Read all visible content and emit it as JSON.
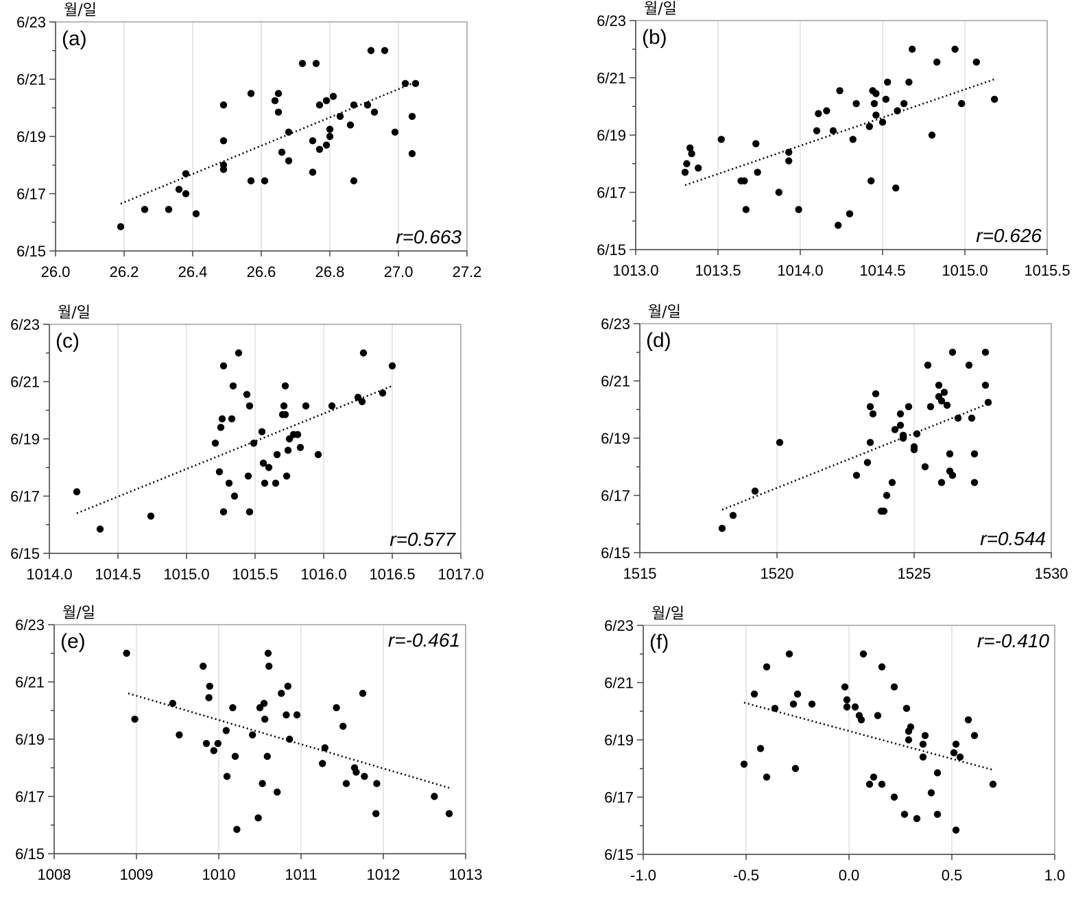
{
  "chart_data": [
    {
      "id": "a",
      "type": "scatter",
      "panel_label": "(a)",
      "r_label": "r=0.663",
      "unit_label": "월/일",
      "xlim": [
        26.0,
        27.2
      ],
      "xticks": [
        26.0,
        26.2,
        26.4,
        26.6,
        26.8,
        27.0,
        27.2
      ],
      "xtick_labels": [
        "26.0",
        "26.2",
        "26.4",
        "26.6",
        "26.8",
        "27.0",
        "27.2"
      ],
      "ylim": [
        0,
        8
      ],
      "yticks": [
        0,
        2,
        4,
        6,
        8
      ],
      "ytick_labels": [
        "6/15",
        "6/17",
        "6/19",
        "6/21",
        "6/23"
      ],
      "trend": {
        "x": [
          26.19,
          27.05
        ],
        "y": [
          1.65,
          5.9
        ]
      },
      "points": [
        [
          26.19,
          0.85
        ],
        [
          26.26,
          1.45
        ],
        [
          26.33,
          1.45
        ],
        [
          26.36,
          2.15
        ],
        [
          26.38,
          2.0
        ],
        [
          26.38,
          2.7
        ],
        [
          26.41,
          1.3
        ],
        [
          26.49,
          5.1
        ],
        [
          26.49,
          3.85
        ],
        [
          26.49,
          3.0
        ],
        [
          26.49,
          2.85
        ],
        [
          26.57,
          5.5
        ],
        [
          26.57,
          2.45
        ],
        [
          26.61,
          2.45
        ],
        [
          26.64,
          5.25
        ],
        [
          26.65,
          5.5
        ],
        [
          26.65,
          4.85
        ],
        [
          26.66,
          3.45
        ],
        [
          26.68,
          3.15
        ],
        [
          26.68,
          4.15
        ],
        [
          26.72,
          6.55
        ],
        [
          26.75,
          3.85
        ],
        [
          26.75,
          2.75
        ],
        [
          26.76,
          6.55
        ],
        [
          26.77,
          5.1
        ],
        [
          26.77,
          3.55
        ],
        [
          26.79,
          3.7
        ],
        [
          26.79,
          5.25
        ],
        [
          26.8,
          4.0
        ],
        [
          26.8,
          4.25
        ],
        [
          26.81,
          5.4
        ],
        [
          26.83,
          4.7
        ],
        [
          26.86,
          4.4
        ],
        [
          26.87,
          5.1
        ],
        [
          26.87,
          2.45
        ],
        [
          26.91,
          5.1
        ],
        [
          26.92,
          7.0
        ],
        [
          26.93,
          4.85
        ],
        [
          26.96,
          7.0
        ],
        [
          26.99,
          4.15
        ],
        [
          27.02,
          5.85
        ],
        [
          27.04,
          4.7
        ],
        [
          27.04,
          3.4
        ],
        [
          27.05,
          5.85
        ]
      ]
    },
    {
      "id": "b",
      "type": "scatter",
      "panel_label": "(b)",
      "r_label": "r=0.626",
      "unit_label": "월/일",
      "xlim": [
        1013.0,
        1015.5
      ],
      "xticks": [
        1013.0,
        1013.5,
        1014.0,
        1014.5,
        1015.0,
        1015.5
      ],
      "xtick_labels": [
        "1013.0",
        "1013.5",
        "1014.0",
        "1014.5",
        "1015.0",
        "1015.5"
      ],
      "ylim": [
        0,
        8
      ],
      "yticks": [
        0,
        2,
        4,
        6,
        8
      ],
      "ytick_labels": [
        "6/15",
        "6/17",
        "6/19",
        "6/21",
        "6/23"
      ],
      "trend": {
        "x": [
          1013.3,
          1015.18
        ],
        "y": [
          2.25,
          5.95
        ]
      },
      "points": [
        [
          1013.3,
          2.7
        ],
        [
          1013.31,
          3.0
        ],
        [
          1013.33,
          3.55
        ],
        [
          1013.34,
          3.35
        ],
        [
          1013.38,
          2.85
        ],
        [
          1013.52,
          3.85
        ],
        [
          1013.64,
          2.4
        ],
        [
          1013.66,
          2.4
        ],
        [
          1013.67,
          1.4
        ],
        [
          1013.73,
          3.7
        ],
        [
          1013.74,
          2.7
        ],
        [
          1013.87,
          2.0
        ],
        [
          1013.93,
          3.4
        ],
        [
          1013.93,
          3.1
        ],
        [
          1013.99,
          1.4
        ],
        [
          1014.1,
          4.15
        ],
        [
          1014.11,
          4.75
        ],
        [
          1014.16,
          4.85
        ],
        [
          1014.2,
          4.15
        ],
        [
          1014.23,
          0.85
        ],
        [
          1014.24,
          5.55
        ],
        [
          1014.3,
          1.25
        ],
        [
          1014.32,
          3.85
        ],
        [
          1014.34,
          5.1
        ],
        [
          1014.42,
          4.3
        ],
        [
          1014.43,
          2.4
        ],
        [
          1014.44,
          5.55
        ],
        [
          1014.45,
          5.1
        ],
        [
          1014.46,
          5.45
        ],
        [
          1014.46,
          4.7
        ],
        [
          1014.5,
          4.45
        ],
        [
          1014.52,
          5.25
        ],
        [
          1014.53,
          5.85
        ],
        [
          1014.58,
          2.15
        ],
        [
          1014.59,
          4.85
        ],
        [
          1014.63,
          5.1
        ],
        [
          1014.66,
          5.85
        ],
        [
          1014.68,
          7.0
        ],
        [
          1014.8,
          4.0
        ],
        [
          1014.83,
          6.55
        ],
        [
          1014.94,
          7.0
        ],
        [
          1014.98,
          5.1
        ],
        [
          1015.07,
          6.55
        ],
        [
          1015.18,
          5.25
        ]
      ]
    },
    {
      "id": "c",
      "type": "scatter",
      "panel_label": "(c)",
      "r_label": "r=0.577",
      "unit_label": "월/일",
      "xlim": [
        1014.0,
        1017.0
      ],
      "xticks": [
        1014.0,
        1014.5,
        1015.0,
        1015.5,
        1016.0,
        1016.5,
        1017.0
      ],
      "xtick_labels": [
        "1014.0",
        "1014.5",
        "1015.0",
        "1015.5",
        "1016.0",
        "1016.5",
        "1017.0"
      ],
      "ylim": [
        0,
        8
      ],
      "yticks": [
        0,
        2,
        4,
        6,
        8
      ],
      "ytick_labels": [
        "6/15",
        "6/17",
        "6/19",
        "6/21",
        "6/23"
      ],
      "trend": {
        "x": [
          1014.2,
          1016.5
        ],
        "y": [
          1.4,
          5.85
        ]
      },
      "points": [
        [
          1014.2,
          2.15
        ],
        [
          1014.37,
          0.85
        ],
        [
          1014.74,
          1.3
        ],
        [
          1015.21,
          3.85
        ],
        [
          1015.24,
          2.85
        ],
        [
          1015.25,
          4.4
        ],
        [
          1015.26,
          4.7
        ],
        [
          1015.27,
          1.45
        ],
        [
          1015.27,
          6.55
        ],
        [
          1015.31,
          2.45
        ],
        [
          1015.33,
          4.7
        ],
        [
          1015.34,
          5.85
        ],
        [
          1015.35,
          2.0
        ],
        [
          1015.38,
          7.0
        ],
        [
          1015.44,
          5.55
        ],
        [
          1015.45,
          2.7
        ],
        [
          1015.46,
          5.15
        ],
        [
          1015.46,
          1.45
        ],
        [
          1015.49,
          3.85
        ],
        [
          1015.55,
          4.25
        ],
        [
          1015.56,
          3.15
        ],
        [
          1015.57,
          2.45
        ],
        [
          1015.6,
          3.0
        ],
        [
          1015.65,
          2.45
        ],
        [
          1015.66,
          3.45
        ],
        [
          1015.7,
          4.85
        ],
        [
          1015.71,
          5.15
        ],
        [
          1015.72,
          5.85
        ],
        [
          1015.72,
          4.85
        ],
        [
          1015.73,
          2.7
        ],
        [
          1015.74,
          3.6
        ],
        [
          1015.75,
          4.0
        ],
        [
          1015.78,
          4.15
        ],
        [
          1015.81,
          4.15
        ],
        [
          1015.83,
          3.7
        ],
        [
          1015.87,
          5.15
        ],
        [
          1015.96,
          3.45
        ],
        [
          1016.06,
          5.15
        ],
        [
          1016.25,
          5.45
        ],
        [
          1016.28,
          5.3
        ],
        [
          1016.29,
          7.0
        ],
        [
          1016.43,
          5.6
        ],
        [
          1016.5,
          6.55
        ]
      ]
    },
    {
      "id": "d",
      "type": "scatter",
      "panel_label": "(d)",
      "r_label": "r=0.544",
      "unit_label": "월/일",
      "xlim": [
        1515,
        1530
      ],
      "xticks": [
        1515,
        1520,
        1525,
        1530
      ],
      "xtick_labels": [
        "1515",
        "1520",
        "1525",
        "1530"
      ],
      "ylim": [
        0,
        8
      ],
      "yticks": [
        0,
        2,
        4,
        6,
        8
      ],
      "ytick_labels": [
        "6/15",
        "6/17",
        "6/19",
        "6/21",
        "6/23"
      ],
      "trend": {
        "x": [
          1518.0,
          1527.7
        ],
        "y": [
          1.5,
          5.2
        ]
      },
      "points": [
        [
          1518.0,
          0.85
        ],
        [
          1518.4,
          1.3
        ],
        [
          1519.2,
          2.15
        ],
        [
          1520.1,
          3.85
        ],
        [
          1522.9,
          2.7
        ],
        [
          1523.3,
          3.15
        ],
        [
          1523.4,
          3.85
        ],
        [
          1523.4,
          5.1
        ],
        [
          1523.5,
          4.85
        ],
        [
          1523.6,
          5.55
        ],
        [
          1523.8,
          1.45
        ],
        [
          1523.9,
          1.45
        ],
        [
          1524.0,
          2.0
        ],
        [
          1524.2,
          2.45
        ],
        [
          1524.3,
          4.3
        ],
        [
          1524.5,
          4.85
        ],
        [
          1524.5,
          4.45
        ],
        [
          1524.6,
          4.1
        ],
        [
          1524.6,
          4.0
        ],
        [
          1524.8,
          5.1
        ],
        [
          1525.0,
          3.7
        ],
        [
          1525.0,
          3.6
        ],
        [
          1525.1,
          4.15
        ],
        [
          1525.4,
          3.0
        ],
        [
          1525.5,
          6.55
        ],
        [
          1525.6,
          5.1
        ],
        [
          1525.9,
          5.85
        ],
        [
          1525.9,
          5.45
        ],
        [
          1526.0,
          5.3
        ],
        [
          1526.0,
          2.45
        ],
        [
          1526.1,
          5.6
        ],
        [
          1526.2,
          5.15
        ],
        [
          1526.3,
          3.45
        ],
        [
          1526.3,
          2.85
        ],
        [
          1526.4,
          2.7
        ],
        [
          1526.4,
          7.0
        ],
        [
          1526.6,
          4.7
        ],
        [
          1527.0,
          6.55
        ],
        [
          1527.1,
          4.7
        ],
        [
          1527.2,
          3.45
        ],
        [
          1527.2,
          2.45
        ],
        [
          1527.6,
          7.0
        ],
        [
          1527.6,
          5.85
        ],
        [
          1527.7,
          5.25
        ]
      ]
    },
    {
      "id": "e",
      "type": "scatter",
      "panel_label": "(e)",
      "r_label": "r=-0.461",
      "unit_label": "월/일",
      "xlim": [
        1008,
        1013
      ],
      "xticks": [
        1008,
        1009,
        1010,
        1011,
        1012,
        1013
      ],
      "xtick_labels": [
        "1008",
        "1009",
        "1010",
        "1011",
        "1012",
        "1013"
      ],
      "ylim": [
        0,
        8
      ],
      "yticks": [
        0,
        2,
        4,
        6,
        8
      ],
      "ytick_labels": [
        "6/15",
        "6/17",
        "6/19",
        "6/21",
        "6/23"
      ],
      "trend": {
        "x": [
          1008.9,
          1012.8
        ],
        "y": [
          5.6,
          2.3
        ]
      },
      "points": [
        [
          1008.88,
          7.0
        ],
        [
          1008.98,
          4.7
        ],
        [
          1009.44,
          5.25
        ],
        [
          1009.52,
          4.15
        ],
        [
          1009.81,
          6.55
        ],
        [
          1009.85,
          3.85
        ],
        [
          1009.88,
          5.45
        ],
        [
          1009.89,
          5.85
        ],
        [
          1009.94,
          3.6
        ],
        [
          1009.99,
          3.85
        ],
        [
          1010.09,
          4.3
        ],
        [
          1010.1,
          2.7
        ],
        [
          1010.17,
          5.1
        ],
        [
          1010.2,
          3.4
        ],
        [
          1010.22,
          0.85
        ],
        [
          1010.41,
          4.15
        ],
        [
          1010.48,
          1.25
        ],
        [
          1010.5,
          5.1
        ],
        [
          1010.53,
          2.45
        ],
        [
          1010.55,
          5.25
        ],
        [
          1010.56,
          4.7
        ],
        [
          1010.59,
          3.4
        ],
        [
          1010.6,
          7.0
        ],
        [
          1010.61,
          6.55
        ],
        [
          1010.71,
          2.15
        ],
        [
          1010.76,
          5.6
        ],
        [
          1010.82,
          4.85
        ],
        [
          1010.84,
          5.85
        ],
        [
          1010.86,
          4.0
        ],
        [
          1010.95,
          4.85
        ],
        [
          1011.26,
          3.15
        ],
        [
          1011.29,
          3.7
        ],
        [
          1011.43,
          5.1
        ],
        [
          1011.51,
          4.45
        ],
        [
          1011.55,
          2.45
        ],
        [
          1011.65,
          3.0
        ],
        [
          1011.67,
          2.85
        ],
        [
          1011.75,
          5.6
        ],
        [
          1011.77,
          2.7
        ],
        [
          1011.91,
          1.4
        ],
        [
          1011.92,
          2.45
        ],
        [
          1012.62,
          2.0
        ],
        [
          1012.8,
          1.4
        ]
      ]
    },
    {
      "id": "f",
      "type": "scatter",
      "panel_label": "(f)",
      "r_label": "r=-0.410",
      "unit_label": "월/일",
      "xlim": [
        -1.0,
        1.0
      ],
      "xticks": [
        -1.0,
        -0.5,
        0.0,
        0.5,
        1.0
      ],
      "xtick_labels": [
        "-1.0",
        "-0.5",
        "0.0",
        "0.5",
        "1.0"
      ],
      "ylim": [
        0,
        8
      ],
      "yticks": [
        0,
        2,
        4,
        6,
        8
      ],
      "ytick_labels": [
        "6/15",
        "6/17",
        "6/19",
        "6/21",
        "6/23"
      ],
      "trend": {
        "x": [
          -0.51,
          0.7
        ],
        "y": [
          5.3,
          2.95
        ]
      },
      "points": [
        [
          -0.51,
          3.15
        ],
        [
          -0.46,
          5.6
        ],
        [
          -0.43,
          3.7
        ],
        [
          -0.4,
          6.55
        ],
        [
          -0.4,
          2.7
        ],
        [
          -0.36,
          5.1
        ],
        [
          -0.29,
          7.0
        ],
        [
          -0.27,
          5.25
        ],
        [
          -0.26,
          3.0
        ],
        [
          -0.25,
          5.6
        ],
        [
          -0.18,
          5.25
        ],
        [
          -0.02,
          5.85
        ],
        [
          -0.01,
          5.4
        ],
        [
          -0.01,
          5.15
        ],
        [
          0.03,
          5.15
        ],
        [
          0.05,
          4.85
        ],
        [
          0.06,
          4.7
        ],
        [
          0.07,
          7.0
        ],
        [
          0.1,
          2.45
        ],
        [
          0.12,
          2.7
        ],
        [
          0.14,
          4.85
        ],
        [
          0.16,
          2.45
        ],
        [
          0.16,
          6.55
        ],
        [
          0.22,
          5.85
        ],
        [
          0.22,
          2.0
        ],
        [
          0.27,
          1.4
        ],
        [
          0.28,
          5.1
        ],
        [
          0.29,
          4.0
        ],
        [
          0.29,
          4.3
        ],
        [
          0.3,
          4.45
        ],
        [
          0.33,
          1.25
        ],
        [
          0.36,
          3.85
        ],
        [
          0.36,
          3.4
        ],
        [
          0.37,
          4.15
        ],
        [
          0.4,
          2.15
        ],
        [
          0.43,
          1.4
        ],
        [
          0.43,
          2.85
        ],
        [
          0.51,
          3.55
        ],
        [
          0.52,
          3.85
        ],
        [
          0.52,
          0.85
        ],
        [
          0.54,
          3.4
        ],
        [
          0.58,
          4.7
        ],
        [
          0.61,
          4.15
        ],
        [
          0.7,
          2.45
        ]
      ]
    }
  ]
}
